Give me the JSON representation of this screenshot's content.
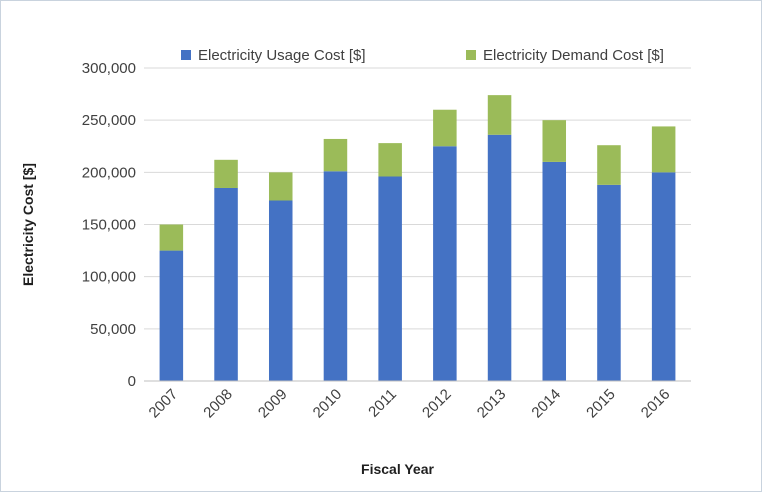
{
  "chart_data": {
    "type": "bar",
    "stacked": true,
    "title": "",
    "xlabel": "Fiscal Year",
    "ylabel": "Electricity Cost [$]",
    "ylim": [
      0,
      300000
    ],
    "yticks": [
      0,
      50000,
      100000,
      150000,
      200000,
      250000,
      300000
    ],
    "ytick_labels": [
      "0",
      "50,000",
      "100,000",
      "150,000",
      "200,000",
      "250,000",
      "300,000"
    ],
    "categories": [
      "2007",
      "2008",
      "2009",
      "2010",
      "2011",
      "2012",
      "2013",
      "2014",
      "2015",
      "2016"
    ],
    "series": [
      {
        "name": "Electricity Usage Cost [$]",
        "color": "#4472c4",
        "values": [
          125000,
          185000,
          173000,
          201000,
          196000,
          225000,
          236000,
          210000,
          188000,
          200000
        ]
      },
      {
        "name": "Electricity Demand Cost [$]",
        "color": "#9bbb59",
        "values": [
          25000,
          27000,
          27000,
          31000,
          32000,
          35000,
          38000,
          40000,
          38000,
          44000
        ]
      }
    ],
    "grid": "horizontal",
    "legend_position": "top"
  }
}
